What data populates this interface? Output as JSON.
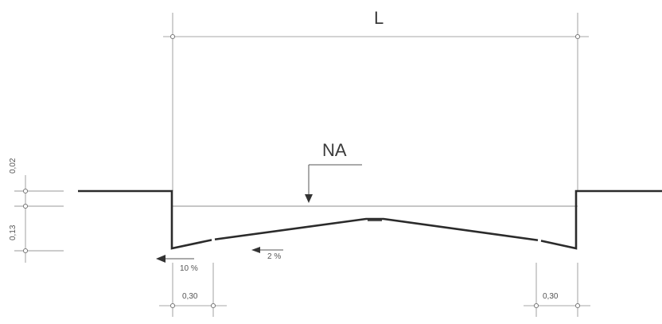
{
  "labels": {
    "span": "L",
    "water_level": "NA",
    "height_top": "0,02",
    "height_bottom": "0,13",
    "width_left": "0,30",
    "width_right": "0,30",
    "slope_edge": "10 %",
    "slope_center": "2 %"
  }
}
